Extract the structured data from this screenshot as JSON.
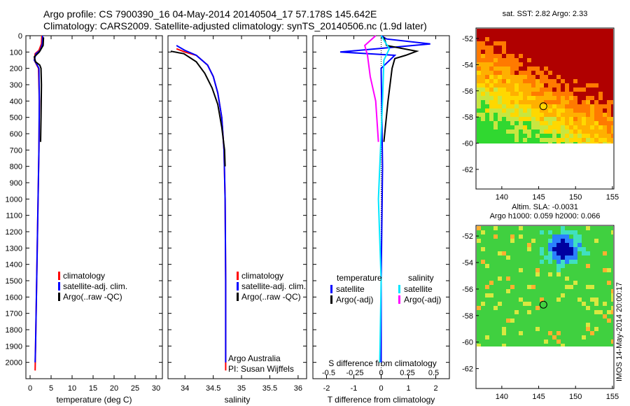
{
  "header": {
    "line1": "Argo profile: CS 7900390_16 04-May-2014 20140504_17 57.178S 145.642E",
    "line2": "Climatology: CARS2009. Satellite-adjusted climatology: synTS_20140506.nc (1.9d later)"
  },
  "colors": {
    "climatology": "#ff0000",
    "satellite": "#0000ff",
    "argo": "#000000",
    "s_satellite": "#00e5ff",
    "s_argo": "#ff00ff"
  },
  "chart_data": [
    {
      "type": "line",
      "panel": "temperature",
      "xlabel": "temperature (deg C)",
      "ylabel": "",
      "xlim": [
        -1,
        31.5
      ],
      "ylim": [
        2100,
        0
      ],
      "xticks": [
        0,
        5,
        10,
        15,
        20,
        25,
        30
      ],
      "yticks": [
        0,
        100,
        200,
        300,
        400,
        500,
        600,
        700,
        800,
        900,
        1000,
        1100,
        1200,
        1300,
        1400,
        1500,
        1600,
        1700,
        1800,
        1900,
        2000
      ],
      "legend": [
        "climatology",
        "satellite-adj. clim.",
        "Argo(..raw -QC)"
      ],
      "series": [
        {
          "name": "climatology",
          "color": "#ff0000",
          "points": [
            [
              2.8,
              0
            ],
            [
              2.7,
              50
            ],
            [
              2.1,
              90
            ],
            [
              1.2,
              110
            ],
            [
              1.0,
              150
            ],
            [
              1.6,
              180
            ],
            [
              2.0,
              200
            ],
            [
              2.2,
              400
            ],
            [
              2.1,
              700
            ],
            [
              1.9,
              1000
            ],
            [
              1.7,
              1300
            ],
            [
              1.5,
              1600
            ],
            [
              1.3,
              1900
            ],
            [
              1.2,
              2050
            ]
          ]
        },
        {
          "name": "satellite-adj. clim.",
          "color": "#0000ff",
          "points": [
            [
              3.0,
              0
            ],
            [
              2.9,
              50
            ],
            [
              2.4,
              90
            ],
            [
              1.4,
              110
            ],
            [
              1.0,
              150
            ],
            [
              1.7,
              180
            ],
            [
              2.1,
              200
            ],
            [
              2.2,
              400
            ],
            [
              2.1,
              700
            ],
            [
              1.9,
              1000
            ],
            [
              1.7,
              1300
            ],
            [
              1.5,
              1600
            ],
            [
              1.3,
              1900
            ],
            [
              1.2,
              2000
            ]
          ]
        },
        {
          "name": "Argo(..raw -QC)",
          "color": "#000000",
          "points": [
            [
              3.2,
              10
            ],
            [
              3.1,
              60
            ],
            [
              2.2,
              100
            ],
            [
              1.0,
              130
            ],
            [
              1.3,
              160
            ],
            [
              2.3,
              180
            ],
            [
              2.6,
              200
            ],
            [
              2.7,
              300
            ],
            [
              2.6,
              500
            ],
            [
              2.5,
              650
            ]
          ]
        }
      ]
    },
    {
      "type": "line",
      "panel": "salinity",
      "xlabel": "salinity",
      "xlim": [
        33.7,
        36.15
      ],
      "ylim": [
        2100,
        0
      ],
      "xticks": [
        34,
        34.5,
        35,
        35.5,
        36
      ],
      "legend": [
        "climatology",
        "satellite-adj. clim.",
        "Argo(..raw -QC)"
      ],
      "annotations": [
        "Argo Australia",
        "PI: Susan Wijffels"
      ],
      "series": [
        {
          "name": "climatology",
          "color": "#ff0000",
          "points": [
            [
              33.85,
              80
            ],
            [
              34.0,
              100
            ],
            [
              34.2,
              120
            ],
            [
              34.4,
              180
            ],
            [
              34.5,
              250
            ],
            [
              34.58,
              350
            ],
            [
              34.65,
              500
            ],
            [
              34.69,
              700
            ],
            [
              34.71,
              1000
            ],
            [
              34.72,
              1500
            ],
            [
              34.72,
              2050
            ]
          ]
        },
        {
          "name": "satellite-adj. clim.",
          "color": "#0000ff",
          "points": [
            [
              33.85,
              60
            ],
            [
              34.0,
              90
            ],
            [
              34.2,
              120
            ],
            [
              34.4,
              180
            ],
            [
              34.5,
              250
            ],
            [
              34.58,
              350
            ],
            [
              34.65,
              500
            ],
            [
              34.69,
              700
            ],
            [
              34.71,
              1000
            ],
            [
              34.72,
              1500
            ],
            [
              34.72,
              2000
            ]
          ]
        },
        {
          "name": "Argo(..raw -QC)",
          "color": "#000000",
          "points": [
            [
              33.75,
              95
            ],
            [
              33.98,
              110
            ],
            [
              34.2,
              160
            ],
            [
              34.35,
              230
            ],
            [
              34.48,
              320
            ],
            [
              34.58,
              420
            ],
            [
              34.65,
              560
            ],
            [
              34.7,
              700
            ],
            [
              34.71,
              800
            ]
          ]
        }
      ]
    },
    {
      "type": "line",
      "panel": "difference",
      "xlabel": "T difference from climatology",
      "xlabel_top": "S difference from climatology",
      "xlim": [
        -2.5,
        2.5
      ],
      "ylim": [
        2100,
        0
      ],
      "xticks": [
        -2,
        -1,
        0,
        1,
        2
      ],
      "xticks_top": [
        -0.5,
        -0.25,
        0,
        0.25,
        0.5
      ],
      "legend_titles": [
        "temperature",
        "salinity"
      ],
      "legend": [
        "satellite",
        "Argo(-adj)",
        "satellite",
        "Argo(-adj)"
      ],
      "series": [
        {
          "name": "satellite",
          "color": "#0000ff",
          "points": [
            [
              0,
              0
            ],
            [
              0.2,
              20
            ],
            [
              1.8,
              50
            ],
            [
              -1.5,
              100
            ],
            [
              0.5,
              120
            ],
            [
              0,
              200
            ],
            [
              0.05,
              800
            ],
            [
              0,
              1500
            ],
            [
              0,
              2000
            ]
          ]
        },
        {
          "name": "Argo(-adj)",
          "color": "#000000",
          "points": [
            [
              0.1,
              10
            ],
            [
              0.2,
              60
            ],
            [
              1.3,
              95
            ],
            [
              0.9,
              120
            ],
            [
              0.5,
              140
            ],
            [
              0.4,
              200
            ],
            [
              0.25,
              400
            ],
            [
              0.1,
              650
            ]
          ]
        },
        {
          "name": "satellite",
          "color": "#00e5ff",
          "points": [
            [
              0,
              0
            ],
            [
              0.3,
              80
            ],
            [
              0.1,
              150
            ],
            [
              0.05,
              400
            ],
            [
              -0.1,
              1000
            ],
            [
              0,
              1500
            ],
            [
              -0.05,
              2000
            ]
          ]
        },
        {
          "name": "Argo(-adj)",
          "color": "#ff00ff",
          "points": [
            [
              -0.2,
              0
            ],
            [
              -0.6,
              60
            ],
            [
              -0.5,
              120
            ],
            [
              -0.4,
              250
            ],
            [
              -0.2,
              400
            ],
            [
              -0.1,
              650
            ]
          ]
        }
      ]
    }
  ],
  "maps": [
    {
      "title": "sat. SST: 2.82 Argo: 2.33",
      "xlim": [
        136.5,
        155.2
      ],
      "ylim": [
        -63.5,
        -51.2
      ],
      "xticks": [
        140,
        145,
        150,
        155
      ],
      "yticks": [
        -52,
        -54,
        -56,
        -58,
        -60,
        -62
      ],
      "marker": [
        145.642,
        -57.178
      ]
    },
    {
      "title_lines": [
        "Altim. SLA: -0.0031",
        "Argo h1000: 0.059 h2000: 0.066"
      ],
      "xlim": [
        136.5,
        155.2
      ],
      "ylim": [
        -63.5,
        -51.2
      ],
      "xticks": [
        140,
        145,
        150,
        155
      ],
      "yticks": [
        -52,
        -54,
        -56,
        -58,
        -60,
        -62
      ],
      "marker": [
        145.642,
        -57.178
      ]
    }
  ],
  "credit": "IMOS 14-May-2014 20:00:17"
}
